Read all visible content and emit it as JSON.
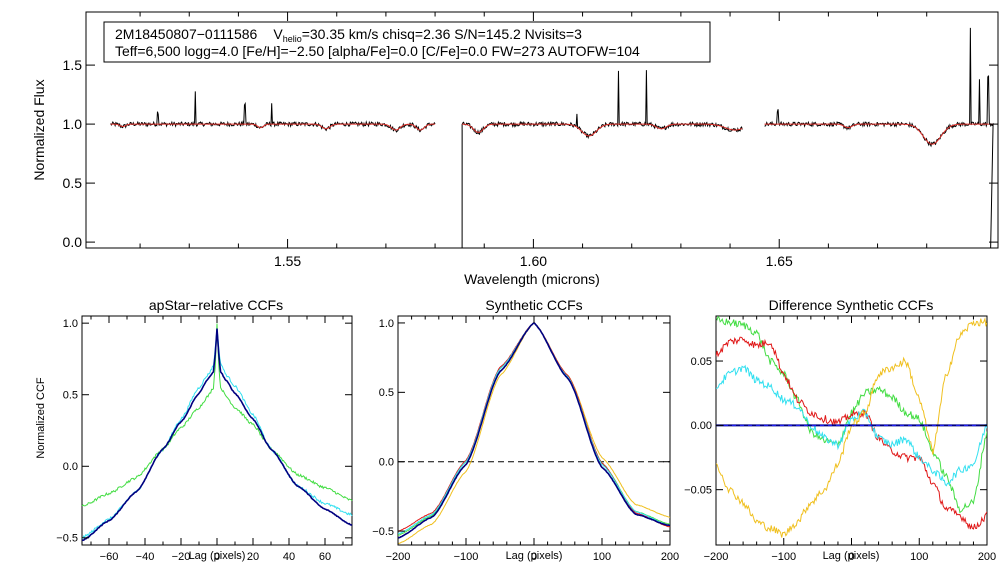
{
  "colors": {
    "observed": "#000000",
    "model": "#e0302a",
    "navy": "#000080",
    "cyan": "#33e0f0",
    "green": "#44dd44",
    "red": "#e01818",
    "yellow": "#f0c020",
    "blue": "#2020ff",
    "dashed": "#000000"
  },
  "chart_data": [
    {
      "type": "line",
      "name": "spectrum",
      "info_line1": {
        "star": "2M18450807−0111586",
        "v_main": "V",
        "v_sub": "helio",
        "v_rest": "=30.35 km/s  chisq=2.36  S/N=145.2  Nvisits=3"
      },
      "info_line2": "Teff=6,500 logg=4.0 [Fe/H]=−2.50 [alpha/Fe]=0.0 [C/Fe]=0.0 FW=273 AUTOFW=104",
      "xlabel": "Wavelength (microns)",
      "ylabel": "Normalized Flux",
      "xlim": [
        1.509,
        1.6945
      ],
      "ylim": [
        -0.05,
        1.95
      ],
      "xticks": [
        {
          "v": 1.55,
          "label": "1.55"
        },
        {
          "v": 1.6,
          "label": "1.60"
        },
        {
          "v": 1.65,
          "label": "1.65"
        }
      ],
      "yticks": [
        {
          "v": 0.0,
          "label": "0.0"
        },
        {
          "v": 0.5,
          "label": "0.5"
        },
        {
          "v": 1.0,
          "label": "1.0"
        },
        {
          "v": 1.5,
          "label": "1.5"
        }
      ],
      "chips": [
        [
          1.514,
          1.58
        ],
        [
          1.5855,
          1.6425
        ],
        [
          1.647,
          1.6935
        ]
      ],
      "absorption_lines": [
        {
          "c": 1.5445,
          "d": 0.03,
          "w": 0.0006
        },
        {
          "c": 1.5578,
          "d": 0.04,
          "w": 0.0008
        },
        {
          "c": 1.572,
          "d": 0.05,
          "w": 0.0009
        },
        {
          "c": 1.577,
          "d": 0.05,
          "w": 0.0008
        },
        {
          "c": 1.5888,
          "d": 0.07,
          "w": 0.001
        },
        {
          "c": 1.6113,
          "d": 0.1,
          "w": 0.0015
        },
        {
          "c": 1.626,
          "d": 0.04,
          "w": 0.001
        },
        {
          "c": 1.641,
          "d": 0.05,
          "w": 0.002
        },
        {
          "c": 1.6811,
          "d": 0.17,
          "w": 0.0018
        },
        {
          "c": 1.5165,
          "d": 0.02,
          "w": 0.0006
        },
        {
          "c": 1.664,
          "d": 0.03,
          "w": 0.0008
        }
      ],
      "emission_spikes": [
        {
          "x": 1.5312,
          "h": 0.28
        },
        {
          "x": 1.5413,
          "h": 0.17
        },
        {
          "x": 1.5468,
          "h": 0.18
        },
        {
          "x": 1.5236,
          "h": 0.1
        },
        {
          "x": 1.6088,
          "h": 0.13
        },
        {
          "x": 1.6173,
          "h": 0.45
        },
        {
          "x": 1.623,
          "h": 0.45
        },
        {
          "x": 1.6497,
          "h": 0.12
        },
        {
          "x": 1.6889,
          "h": 0.8
        },
        {
          "x": 1.6907,
          "h": 0.37
        },
        {
          "x": 1.6925,
          "h": 0.4
        }
      ],
      "dropouts": [
        {
          "x": 1.586,
          "y": -0.05
        },
        {
          "x": 1.693,
          "y": -0.05
        }
      ]
    },
    {
      "type": "line",
      "name": "apstar-ccf",
      "title": "apStar−relative CCFs",
      "xlabel": "Lag (pixels)",
      "ylabel": "Normalized CCF",
      "xlim": [
        -75,
        75
      ],
      "ylim": [
        -0.55,
        1.05
      ],
      "xticks": [
        -60,
        -40,
        -20,
        0,
        20,
        40,
        60
      ],
      "yticks": [
        {
          "v": -0.5,
          "label": "−0.5"
        },
        {
          "v": 0.0,
          "label": "0.0"
        },
        {
          "v": 0.5,
          "label": "0.5"
        },
        {
          "v": 1.0,
          "label": "1.0"
        }
      ],
      "series": [
        {
          "name": "green",
          "color": "green",
          "x": [
            -75,
            -60,
            -45,
            -30,
            -20,
            -10,
            -5,
            -2,
            -1,
            0,
            1,
            2,
            5,
            10,
            20,
            30,
            45,
            60,
            75
          ],
          "y": [
            -0.28,
            -0.19,
            -0.08,
            0.12,
            0.27,
            0.41,
            0.49,
            0.55,
            0.7,
            1.0,
            0.7,
            0.55,
            0.49,
            0.41,
            0.29,
            0.12,
            -0.06,
            -0.15,
            -0.24
          ]
        },
        {
          "name": "cyan",
          "color": "cyan",
          "x": [
            -75,
            -60,
            -45,
            -30,
            -20,
            -10,
            -5,
            -2,
            -1,
            0,
            1,
            2,
            5,
            10,
            20,
            30,
            45,
            60,
            75
          ],
          "y": [
            -0.5,
            -0.37,
            -0.18,
            0.12,
            0.33,
            0.55,
            0.64,
            0.7,
            0.82,
            0.97,
            0.82,
            0.72,
            0.64,
            0.56,
            0.36,
            0.12,
            -0.14,
            -0.26,
            -0.34
          ]
        },
        {
          "name": "navy",
          "color": "navy",
          "x": [
            -75,
            -60,
            -45,
            -30,
            -20,
            -10,
            -5,
            -2,
            -1,
            0,
            1,
            2,
            5,
            10,
            20,
            30,
            45,
            60,
            75
          ],
          "y": [
            -0.52,
            -0.38,
            -0.18,
            0.12,
            0.31,
            0.51,
            0.61,
            0.66,
            0.78,
            0.96,
            0.78,
            0.66,
            0.6,
            0.51,
            0.33,
            0.12,
            -0.14,
            -0.3,
            -0.41
          ]
        }
      ]
    },
    {
      "type": "line",
      "name": "synthetic-ccf",
      "title": "Synthetic CCFs",
      "xlabel": "Lag (pixels)",
      "xlim": [
        -200,
        200
      ],
      "ylim": [
        -0.6,
        1.05
      ],
      "xticks": [
        -200,
        -100,
        0,
        100,
        200
      ],
      "yticks": [
        {
          "v": -0.5,
          "label": "−0.5"
        },
        {
          "v": 0.0,
          "label": "0.0"
        },
        {
          "v": 0.5,
          "label": "0.5"
        },
        {
          "v": 1.0,
          "label": "1.0"
        }
      ],
      "zero_line": 0.0,
      "series": [
        {
          "name": "yellow",
          "color": "yellow",
          "x": [
            -200,
            -150,
            -100,
            -50,
            0,
            50,
            100,
            150,
            200
          ],
          "y": [
            -0.59,
            -0.45,
            -0.07,
            0.62,
            1.0,
            0.62,
            0.03,
            -0.31,
            -0.4
          ]
        },
        {
          "name": "green",
          "color": "green",
          "x": [
            -200,
            -150,
            -100,
            -50,
            0,
            50,
            100,
            150,
            200
          ],
          "y": [
            -0.53,
            -0.39,
            0.0,
            0.67,
            1.0,
            0.61,
            -0.01,
            -0.36,
            -0.45
          ]
        },
        {
          "name": "red",
          "color": "red",
          "x": [
            -200,
            -150,
            -100,
            -50,
            0,
            50,
            100,
            150,
            200
          ],
          "y": [
            -0.5,
            -0.37,
            0.01,
            0.68,
            1.0,
            0.62,
            -0.01,
            -0.37,
            -0.47
          ]
        },
        {
          "name": "cyan",
          "color": "cyan",
          "x": [
            -200,
            -150,
            -100,
            -50,
            0,
            50,
            100,
            150,
            200
          ],
          "y": [
            -0.52,
            -0.38,
            0.0,
            0.67,
            1.0,
            0.61,
            -0.02,
            -0.36,
            -0.46
          ]
        },
        {
          "name": "navy",
          "color": "navy",
          "x": [
            -200,
            -150,
            -100,
            -50,
            0,
            50,
            100,
            150,
            200
          ],
          "y": [
            -0.55,
            -0.4,
            -0.02,
            0.65,
            1.0,
            0.6,
            -0.04,
            -0.38,
            -0.46
          ]
        }
      ]
    },
    {
      "type": "line",
      "name": "difference-ccf",
      "title": "Difference Synthetic CCFs",
      "xlabel": "Lag (pixels)",
      "xlim": [
        -200,
        200
      ],
      "ylim": [
        -0.093,
        0.085
      ],
      "xticks": [
        -200,
        -100,
        0,
        100,
        200
      ],
      "yticks": [
        {
          "v": -0.05,
          "label": "−0.05"
        },
        {
          "v": 0.0,
          "label": "0.00"
        },
        {
          "v": 0.05,
          "label": "0.05"
        }
      ],
      "series": [
        {
          "name": "green",
          "color": "green",
          "x": [
            -200,
            -180,
            -160,
            -140,
            -120,
            -100,
            -80,
            -60,
            -40,
            -20,
            0,
            20,
            40,
            60,
            80,
            100,
            120,
            140,
            160,
            180,
            200
          ],
          "y": [
            0.082,
            0.08,
            0.078,
            0.072,
            0.05,
            0.04,
            0.02,
            -0.005,
            -0.012,
            -0.015,
            0.01,
            0.025,
            0.028,
            0.022,
            0.01,
            0.005,
            -0.02,
            -0.04,
            -0.065,
            -0.06,
            -0.005
          ]
        },
        {
          "name": "red",
          "color": "red",
          "x": [
            -200,
            -180,
            -160,
            -140,
            -120,
            -100,
            -80,
            -60,
            -40,
            -20,
            0,
            20,
            40,
            60,
            80,
            100,
            120,
            140,
            160,
            180,
            200
          ],
          "y": [
            0.055,
            0.065,
            0.067,
            0.062,
            0.065,
            0.04,
            0.02,
            0.01,
            0.005,
            0.002,
            0.008,
            0.01,
            -0.01,
            -0.02,
            -0.025,
            -0.025,
            -0.045,
            -0.065,
            -0.07,
            -0.08,
            -0.07
          ]
        },
        {
          "name": "cyan",
          "color": "cyan",
          "x": [
            -200,
            -180,
            -160,
            -140,
            -120,
            -100,
            -80,
            -60,
            -40,
            -20,
            0,
            20,
            40,
            60,
            80,
            100,
            120,
            140,
            160,
            180,
            200
          ],
          "y": [
            0.03,
            0.04,
            0.045,
            0.035,
            0.03,
            0.02,
            0.015,
            0.0,
            -0.01,
            -0.015,
            0.005,
            0.01,
            -0.01,
            -0.015,
            -0.01,
            -0.025,
            -0.035,
            -0.045,
            -0.035,
            -0.03,
            0.0
          ]
        },
        {
          "name": "yellow",
          "color": "yellow",
          "x": [
            -200,
            -180,
            -160,
            -140,
            -120,
            -100,
            -80,
            -60,
            -40,
            -20,
            0,
            20,
            40,
            60,
            80,
            100,
            120,
            140,
            160,
            180,
            200
          ],
          "y": [
            -0.03,
            -0.05,
            -0.06,
            -0.075,
            -0.08,
            -0.085,
            -0.075,
            -0.06,
            -0.05,
            -0.03,
            0.0,
            0.01,
            0.04,
            0.045,
            0.05,
            0.02,
            -0.02,
            0.04,
            0.07,
            0.08,
            0.08
          ]
        },
        {
          "name": "navy",
          "color": "navy",
          "x": [
            -200,
            200
          ],
          "y": [
            0.0,
            0.0
          ]
        },
        {
          "name": "blue-dashed",
          "color": "blue",
          "x": [
            -200,
            200
          ],
          "y": [
            0.0,
            0.0
          ],
          "dashed": true
        }
      ]
    }
  ]
}
